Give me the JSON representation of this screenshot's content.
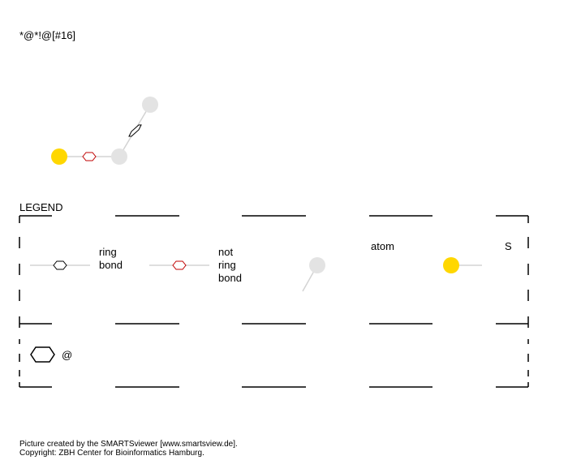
{
  "query": "*@*!@[#16]",
  "legend": {
    "title": "LEGEND",
    "ring_bond": [
      "ring",
      "bond"
    ],
    "not_ring_bond": [
      "not",
      "ring",
      "bond"
    ],
    "atom_label": "atom",
    "sulfur_symbol": "S",
    "ring_primitive": "@"
  },
  "colors": {
    "sulfur": "#ffd700",
    "generic_atom": "#e3e3e3",
    "bond_line": "#d3d3d3",
    "ring_marker": "#000000",
    "not_ring_marker": "#c00000"
  },
  "footer": {
    "line1": "Picture created by the SMARTSviewer [www.smartsview.de].",
    "line2": "Copyright: ZBH Center for Bioinformatics Hamburg."
  }
}
